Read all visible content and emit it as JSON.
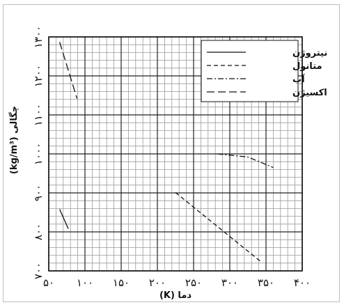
{
  "chart_data": {
    "type": "line",
    "title": "",
    "xlabel": "دما (K)",
    "ylabel": "چگالی (kg/m³)",
    "xlim": [
      50,
      400
    ],
    "ylim": [
      700,
      1300
    ],
    "xticks": [
      50,
      100,
      150,
      200,
      250,
      300,
      350,
      400
    ],
    "xtick_labels": [
      "۵۰",
      "۱۰۰",
      "۱۵۰",
      "۲۰۰",
      "۲۵۰",
      "۳۰۰",
      "۳۵۰",
      "۴۰۰"
    ],
    "yticks": [
      700,
      800,
      900,
      1000,
      1100,
      1200,
      1300
    ],
    "ytick_labels": [
      "۷۰۰",
      "۸۰۰",
      "۹۰۰",
      "۱۰۰۰",
      "۱۱۰۰",
      "۱۲۰۰",
      "۱۳۰۰"
    ],
    "grid": true,
    "minor_grid_step_x": 10,
    "minor_grid_step_y": 20,
    "legend_position": "top-right",
    "series": [
      {
        "name": "نیتروژن",
        "style": "solid",
        "x": [
          65,
          77
        ],
        "y": [
          858,
          808
        ]
      },
      {
        "name": "متانول",
        "style": "dashed",
        "x": [
          225,
          342
        ],
        "y": [
          901,
          725
        ]
      },
      {
        "name": "آب",
        "style": "dashdot",
        "x": [
          283,
          325,
          360
        ],
        "y": [
          1000,
          992,
          965
        ]
      },
      {
        "name": "اکسیژن",
        "style": "longdash",
        "x": [
          65,
          89
        ],
        "y": [
          1287,
          1142
        ]
      }
    ]
  }
}
